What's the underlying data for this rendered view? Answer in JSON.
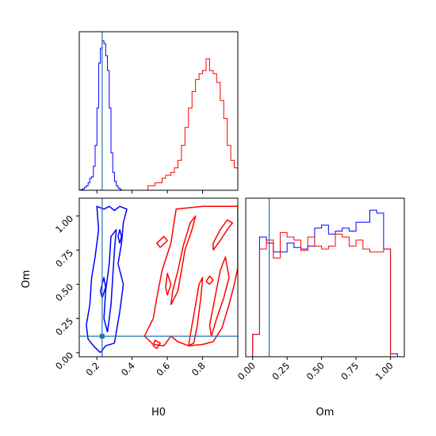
{
  "chart_data": [
    {
      "type": "histogram",
      "panel": "H0 marginal",
      "xlim": [
        0.1,
        1.0
      ],
      "truth": 0.23,
      "series": [
        {
          "color": "#0000ff",
          "edges": [
            0.11,
            0.12,
            0.13,
            0.14,
            0.15,
            0.16,
            0.17,
            0.18,
            0.19,
            0.2,
            0.21,
            0.22,
            0.23,
            0.24,
            0.25,
            0.26,
            0.27,
            0.28,
            0.29,
            0.3,
            0.31,
            0.32,
            0.33,
            0.34
          ],
          "density": [
            0.005,
            0.01,
            0.02,
            0.03,
            0.05,
            0.08,
            0.09,
            0.16,
            0.3,
            0.55,
            0.85,
            0.95,
            1.0,
            0.98,
            0.9,
            0.8,
            0.55,
            0.25,
            0.12,
            0.06,
            0.03,
            0.015,
            0.005
          ]
        },
        {
          "color": "#ff0000",
          "edges": [
            0.49,
            0.53,
            0.57,
            0.59,
            0.62,
            0.64,
            0.66,
            0.68,
            0.7,
            0.72,
            0.74,
            0.76,
            0.78,
            0.8,
            0.82,
            0.84,
            0.86,
            0.88,
            0.9,
            0.92,
            0.94,
            0.96,
            0.98,
            1.0
          ],
          "density": [
            0.03,
            0.05,
            0.08,
            0.1,
            0.12,
            0.15,
            0.2,
            0.3,
            0.42,
            0.55,
            0.66,
            0.74,
            0.78,
            0.8,
            0.88,
            0.8,
            0.78,
            0.72,
            0.6,
            0.48,
            0.3,
            0.2,
            0.15
          ]
        }
      ]
    },
    {
      "type": "contour",
      "panel": "H0 vs Om",
      "xlabel": "H0",
      "ylabel": "Om",
      "xlim": [
        0.1,
        1.0
      ],
      "ylim": [
        -0.03,
        1.13
      ],
      "xticks": [
        "0.2",
        "0.4",
        "0.6",
        "0.8"
      ],
      "yticks": [
        "0.00",
        "0.25",
        "0.50",
        "0.75",
        "1.00"
      ],
      "truth": {
        "x": 0.23,
        "y": 0.12
      },
      "series": [
        {
          "color": "#0000ff",
          "contours": [
            [
              [
                0.22,
                0.0
              ],
              [
                0.25,
                0.05
              ],
              [
                0.3,
                0.07
              ],
              [
                0.31,
                0.15
              ],
              [
                0.33,
                0.3
              ],
              [
                0.35,
                0.5
              ],
              [
                0.32,
                0.65
              ],
              [
                0.34,
                0.8
              ],
              [
                0.35,
                0.95
              ],
              [
                0.37,
                1.05
              ],
              [
                0.33,
                1.07
              ],
              [
                0.3,
                1.04
              ],
              [
                0.27,
                1.07
              ],
              [
                0.24,
                1.05
              ],
              [
                0.2,
                1.07
              ],
              [
                0.21,
                0.9
              ],
              [
                0.19,
                0.7
              ],
              [
                0.17,
                0.55
              ],
              [
                0.16,
                0.35
              ],
              [
                0.14,
                0.2
              ],
              [
                0.15,
                0.1
              ],
              [
                0.18,
                0.05
              ],
              [
                0.22,
                0.0
              ]
            ],
            [
              [
                0.26,
                0.15
              ],
              [
                0.28,
                0.35
              ],
              [
                0.29,
                0.55
              ],
              [
                0.3,
                0.75
              ],
              [
                0.31,
                0.9
              ],
              [
                0.28,
                0.85
              ],
              [
                0.27,
                0.65
              ],
              [
                0.25,
                0.45
              ],
              [
                0.24,
                0.25
              ],
              [
                0.26,
                0.15
              ]
            ],
            [
              [
                0.23,
                0.4
              ],
              [
                0.25,
                0.48
              ],
              [
                0.24,
                0.55
              ],
              [
                0.22,
                0.45
              ],
              [
                0.23,
                0.4
              ]
            ],
            [
              [
                0.33,
                0.8
              ],
              [
                0.34,
                0.85
              ],
              [
                0.33,
                0.9
              ],
              [
                0.32,
                0.85
              ],
              [
                0.33,
                0.8
              ]
            ]
          ]
        },
        {
          "color": "#ff0000",
          "contours": [
            [
              [
                0.47,
                0.12
              ],
              [
                0.52,
                0.06
              ],
              [
                0.58,
                0.05
              ],
              [
                0.62,
                0.12
              ],
              [
                0.66,
                0.08
              ],
              [
                0.72,
                0.05
              ],
              [
                0.8,
                0.06
              ],
              [
                0.86,
                0.08
              ],
              [
                0.91,
                0.18
              ],
              [
                0.95,
                0.35
              ],
              [
                0.98,
                0.5
              ],
              [
                1.0,
                0.62
              ],
              [
                1.0,
                1.07
              ],
              [
                0.8,
                1.07
              ],
              [
                0.65,
                1.05
              ],
              [
                0.62,
                0.8
              ],
              [
                0.57,
                0.6
              ],
              [
                0.54,
                0.4
              ],
              [
                0.52,
                0.25
              ],
              [
                0.47,
                0.12
              ]
            ],
            [
              [
                0.62,
                0.35
              ],
              [
                0.66,
                0.45
              ],
              [
                0.68,
                0.6
              ],
              [
                0.7,
                0.75
              ],
              [
                0.74,
                0.9
              ],
              [
                0.76,
                1.0
              ],
              [
                0.73,
                0.95
              ],
              [
                0.69,
                0.78
              ],
              [
                0.66,
                0.6
              ],
              [
                0.63,
                0.45
              ],
              [
                0.62,
                0.35
              ]
            ],
            [
              [
                0.72,
                0.05
              ],
              [
                0.74,
                0.2
              ],
              [
                0.76,
                0.35
              ],
              [
                0.78,
                0.5
              ],
              [
                0.8,
                0.55
              ],
              [
                0.79,
                0.4
              ],
              [
                0.77,
                0.2
              ],
              [
                0.75,
                0.07
              ],
              [
                0.72,
                0.05
              ]
            ],
            [
              [
                0.85,
                0.12
              ],
              [
                0.88,
                0.25
              ],
              [
                0.92,
                0.4
              ],
              [
                0.95,
                0.55
              ],
              [
                0.93,
                0.7
              ],
              [
                0.9,
                0.6
              ],
              [
                0.87,
                0.4
              ],
              [
                0.84,
                0.2
              ],
              [
                0.85,
                0.12
              ]
            ],
            [
              [
                0.86,
                0.75
              ],
              [
                0.9,
                0.82
              ],
              [
                0.94,
                0.9
              ],
              [
                0.97,
                0.95
              ],
              [
                0.94,
                0.97
              ],
              [
                0.9,
                0.9
              ],
              [
                0.86,
                0.8
              ],
              [
                0.86,
                0.75
              ]
            ],
            [
              [
                0.56,
                0.77
              ],
              [
                0.6,
                0.82
              ],
              [
                0.58,
                0.85
              ],
              [
                0.54,
                0.8
              ],
              [
                0.56,
                0.77
              ]
            ],
            [
              [
                0.54,
                0.03
              ],
              [
                0.56,
                0.07
              ],
              [
                0.53,
                0.09
              ],
              [
                0.52,
                0.05
              ],
              [
                0.54,
                0.03
              ]
            ],
            [
              [
                0.6,
                0.42
              ],
              [
                0.62,
                0.5
              ],
              [
                0.6,
                0.58
              ],
              [
                0.59,
                0.48
              ],
              [
                0.6,
                0.42
              ]
            ],
            [
              [
                0.84,
                0.5
              ],
              [
                0.86,
                0.53
              ],
              [
                0.84,
                0.56
              ],
              [
                0.82,
                0.52
              ],
              [
                0.84,
                0.5
              ]
            ]
          ]
        }
      ]
    },
    {
      "type": "histogram",
      "panel": "Om marginal",
      "xlabel": "Om",
      "xlim": [
        -0.05,
        1.1
      ],
      "xticks": [
        "0.00",
        "0.25",
        "0.50",
        "0.75",
        "1.00"
      ],
      "truth": 0.12,
      "series": [
        {
          "color": "#0000ff",
          "edges": [
            0.0,
            0.05,
            0.1,
            0.15,
            0.2,
            0.25,
            0.3,
            0.35,
            0.4,
            0.45,
            0.5,
            0.55,
            0.6,
            0.65,
            0.7,
            0.75,
            0.8,
            0.85,
            0.9,
            0.95,
            1.0,
            1.05,
            1.1
          ],
          "density": [
            0.15,
            0.8,
            0.76,
            0.7,
            0.7,
            0.76,
            0.73,
            0.72,
            0.74,
            0.86,
            0.88,
            0.82,
            0.84,
            0.86,
            0.84,
            0.9,
            0.9,
            0.98,
            0.96,
            0.72,
            0.02,
            0.0
          ]
        },
        {
          "color": "#ff0000",
          "edges": [
            0.0,
            0.05,
            0.1,
            0.15,
            0.2,
            0.25,
            0.3,
            0.35,
            0.4,
            0.45,
            0.5,
            0.55,
            0.6,
            0.65,
            0.7,
            0.75,
            0.8,
            0.85,
            0.9,
            0.95,
            1.0
          ],
          "density": [
            0.15,
            0.72,
            0.78,
            0.66,
            0.83,
            0.8,
            0.78,
            0.71,
            0.8,
            0.74,
            0.72,
            0.74,
            0.82,
            0.8,
            0.74,
            0.78,
            0.72,
            0.7,
            0.7,
            0.72
          ]
        }
      ]
    }
  ]
}
